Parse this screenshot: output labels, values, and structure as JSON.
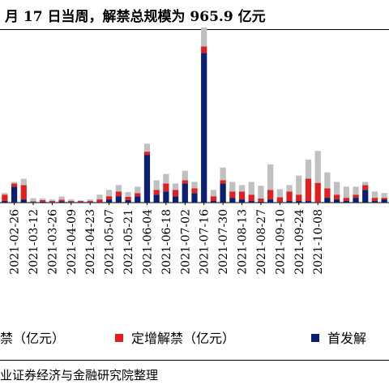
{
  "title": "月 17 日当周，解禁总规模为 965.9 亿元",
  "source": "业证券经济与金融研究院整理",
  "colors": {
    "other": "#c0c0c0",
    "placement": "#e02020",
    "ipo": "#0a1f6e"
  },
  "legend": [
    {
      "key": "other",
      "label": "禁（亿元）"
    },
    {
      "key": "placement",
      "label": "定增解禁（亿元）"
    },
    {
      "key": "ipo",
      "label": "首发解"
    }
  ],
  "chart_data": {
    "type": "bar",
    "stacked": true,
    "ylim": [
      0,
      560
    ],
    "grid": false,
    "legend_position": "bottom",
    "tick_labels": [
      "2021-02-26",
      "2021-03-12",
      "2021-03-26",
      "2021-04-09",
      "2021-04-23",
      "2021-05-07",
      "2021-05-21",
      "2021-06-04",
      "2021-06-18",
      "2021-07-02",
      "2021-07-16",
      "2021-07-30",
      "2021-08-13",
      "2021-08-27",
      "2021-09-10",
      "2021-09-24",
      "2021-10-08"
    ],
    "series": [
      {
        "key": "ipo",
        "values": [
          5,
          50,
          10,
          2,
          3,
          2,
          4,
          2,
          2,
          2,
          2,
          10,
          20,
          8,
          20,
          150,
          25,
          35,
          20,
          60,
          30,
          470,
          5,
          60,
          15,
          10,
          5,
          3,
          10,
          2,
          5,
          5,
          5,
          2,
          15,
          10,
          5,
          15,
          40,
          5,
          10
        ]
      },
      {
        "key": "placement",
        "values": [
          20,
          10,
          45,
          2,
          5,
          3,
          5,
          3,
          3,
          3,
          8,
          10,
          15,
          10,
          10,
          10,
          15,
          25,
          20,
          10,
          15,
          20,
          15,
          10,
          20,
          25,
          20,
          10,
          30,
          15,
          30,
          20,
          70,
          60,
          30,
          15,
          10,
          10,
          15,
          10,
          5
        ]
      },
      {
        "key": "other",
        "values": [
          5,
          5,
          20,
          10,
          5,
          5,
          10,
          5,
          2,
          5,
          15,
          20,
          20,
          15,
          20,
          25,
          30,
          30,
          20,
          30,
          20,
          60,
          20,
          40,
          30,
          20,
          40,
          40,
          80,
          25,
          20,
          60,
          60,
          100,
          50,
          40,
          35,
          25,
          10,
          20,
          15
        ]
      }
    ]
  }
}
